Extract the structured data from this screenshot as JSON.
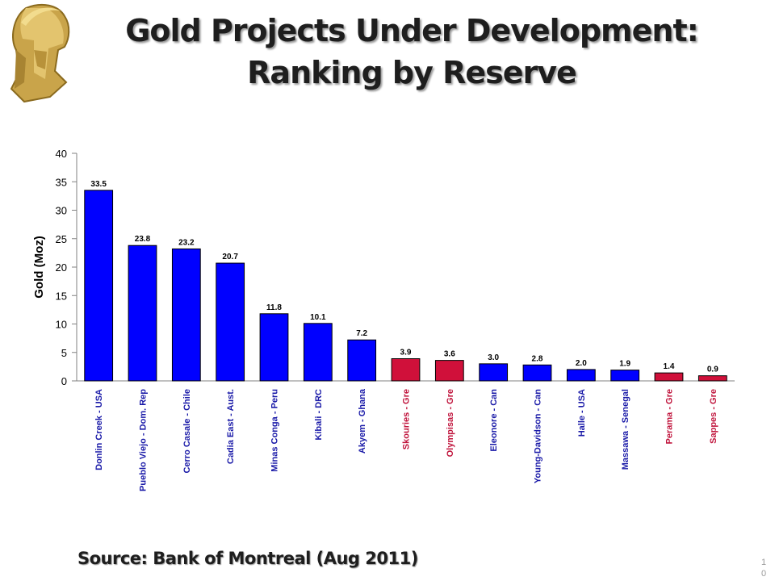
{
  "title_line1": "Gold Projects Under Development:",
  "title_line2": "Ranking by Reserve",
  "source": "Source: Bank of Montreal (Aug 2011)",
  "page_number": "10",
  "logo": "helmet-logo",
  "colors": {
    "blue": "#0000ff",
    "red": "#d0103a",
    "blue_label": "#1a1aa8",
    "red_label": "#c0143c"
  },
  "chart_data": {
    "type": "bar",
    "title": "",
    "xlabel": "",
    "ylabel": "Gold (Moz)",
    "ylim": [
      0,
      40
    ],
    "yticks": [
      0,
      5,
      10,
      15,
      20,
      25,
      30,
      35,
      40
    ],
    "categories": [
      "Donlin Creek - USA",
      "Pueblo Viejo - Dom. Rep",
      "Cerro Casale - Chile",
      "Cadia East - Aust.",
      "Minas Conga - Peru",
      "Kibali - DRC",
      "Akyem - Ghana",
      "Skouries - Gre",
      "Olympisas - Gre",
      "Eleonore - Can",
      "Young-Davidson - Can",
      "Halle - USA",
      "Massawa - Senegal",
      "Perama - Gre",
      "Sappes - Gre"
    ],
    "values": [
      33.5,
      23.8,
      23.2,
      20.7,
      11.8,
      10.1,
      7.2,
      3.9,
      3.6,
      3.0,
      2.8,
      2.0,
      1.9,
      1.4,
      0.9
    ],
    "value_labels": [
      "33.5",
      "23.8",
      "23.2",
      "20.7",
      "11.8",
      "10.1",
      "7.2",
      "3.9",
      "3.6",
      "3.0",
      "2.8",
      "2.0",
      "1.9",
      "1.4",
      "0.9"
    ],
    "bar_colors": [
      "blue",
      "blue",
      "blue",
      "blue",
      "blue",
      "blue",
      "blue",
      "red",
      "red",
      "blue",
      "blue",
      "blue",
      "blue",
      "red",
      "red"
    ],
    "grid": false,
    "legend": "none"
  }
}
